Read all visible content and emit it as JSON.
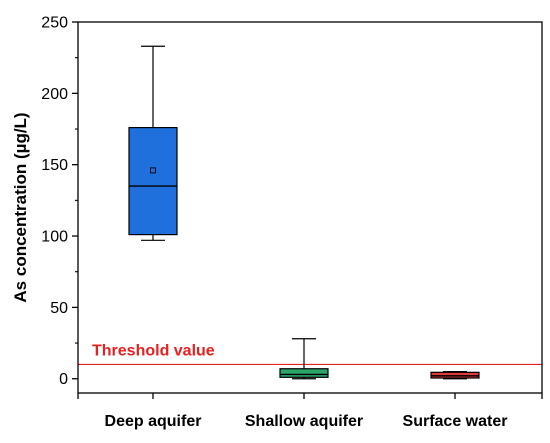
{
  "chart_data": {
    "type": "box",
    "ylabel": "As concentration (µg/L)",
    "ylim": [
      -10,
      250
    ],
    "yticks": [
      0,
      50,
      100,
      150,
      200,
      250
    ],
    "ytick_labels": [
      "0",
      "50",
      "100",
      "150",
      "200",
      "250"
    ],
    "grid": false,
    "categories": [
      "Deep aquifer",
      "Shallow aquifer",
      "Surface water"
    ],
    "boxes": [
      {
        "category": "Deep aquifer",
        "whisker_low": 97,
        "q1": 101,
        "median": 135,
        "q3": 176,
        "whisker_high": 233,
        "mean": 146,
        "color": "#1f6fdc"
      },
      {
        "category": "Shallow aquifer",
        "whisker_low": 0,
        "q1": 1,
        "median": 3,
        "q3": 7,
        "whisker_high": 28,
        "mean": null,
        "color": "#2aa56a"
      },
      {
        "category": "Surface water",
        "whisker_low": 0,
        "q1": 0.5,
        "median": 2,
        "q3": 4.5,
        "whisker_high": 5,
        "mean": null,
        "color": "#e03a3a"
      }
    ],
    "reference_line": {
      "label": "Threshold value",
      "value": 10,
      "color": "#e8201f"
    }
  }
}
